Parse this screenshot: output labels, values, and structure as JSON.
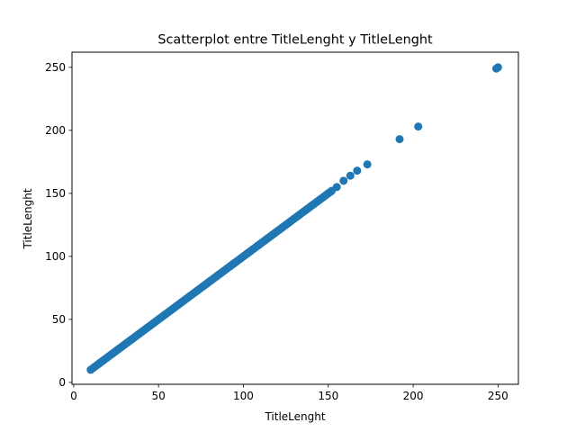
{
  "chart_data": {
    "type": "scatter",
    "title": "Scatterplot entre TitleLenght y TitleLenght",
    "xlabel": "TitleLenght",
    "ylabel": "TitleLenght",
    "xlim": [
      -1,
      262
    ],
    "ylim": [
      -1.5,
      262
    ],
    "xticks": [
      0,
      50,
      100,
      150,
      200,
      250
    ],
    "yticks": [
      0,
      50,
      100,
      150,
      200,
      250
    ],
    "grid": false,
    "point_color": "#1f77b4",
    "series": [
      {
        "diagonal_range": [
          10,
          152
        ],
        "points": [
          {
            "x": 155,
            "y": 155
          },
          {
            "x": 159,
            "y": 160
          },
          {
            "x": 163,
            "y": 164
          },
          {
            "x": 167,
            "y": 168
          },
          {
            "x": 173,
            "y": 173
          },
          {
            "x": 192,
            "y": 193
          },
          {
            "x": 203,
            "y": 203
          },
          {
            "x": 249,
            "y": 249
          },
          {
            "x": 250,
            "y": 250
          }
        ]
      }
    ]
  }
}
